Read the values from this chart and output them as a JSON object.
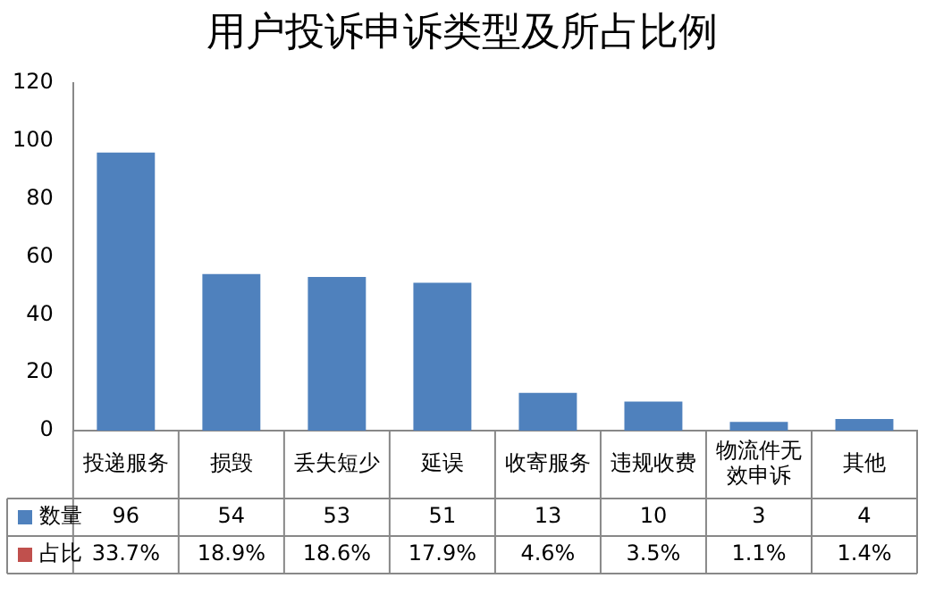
{
  "chart_data": {
    "type": "bar",
    "title": "用户投诉申诉类型及所占比例",
    "categories": [
      "投递服务",
      "损毁",
      "丢失短少",
      "延误",
      "收寄服务",
      "违规收费",
      "物流件无效申诉",
      "其他"
    ],
    "series": [
      {
        "name": "数量",
        "color": "#4f81bd",
        "values": [
          96,
          54,
          53,
          51,
          13,
          10,
          3,
          4
        ]
      },
      {
        "name": "占比",
        "color": "#c0504d",
        "values": [
          0.337,
          0.189,
          0.186,
          0.179,
          0.046,
          0.035,
          0.011,
          0.014
        ],
        "value_labels": [
          "33.7%",
          "18.9%",
          "18.6%",
          "17.9%",
          "4.6%",
          "3.5%",
          "1.1%",
          "1.4%"
        ]
      }
    ],
    "ylim": [
      0,
      120
    ],
    "yticks": [
      0,
      20,
      40,
      60,
      80,
      100,
      120
    ],
    "grid": false,
    "legend": "bottom",
    "data_labels": true
  }
}
